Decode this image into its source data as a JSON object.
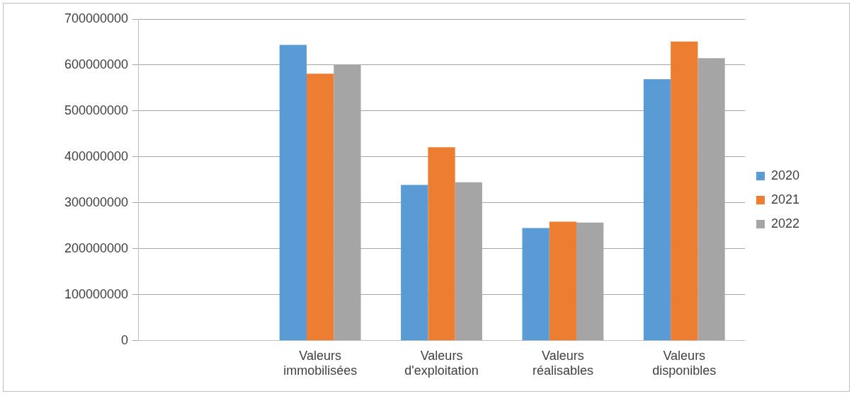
{
  "chart_data": {
    "type": "bar",
    "categories": [
      null,
      "Valeurs immobilisées",
      "Valeurs d'exploitation",
      "Valeurs réalisables",
      "Valeurs disponibles"
    ],
    "series": [
      {
        "name": "2020",
        "color": "#5b9bd5",
        "values": [
          null,
          644000000,
          339000000,
          245000000,
          569000000
        ]
      },
      {
        "name": "2021",
        "color": "#ed7d31",
        "values": [
          null,
          581000000,
          421000000,
          259000000,
          651000000
        ]
      },
      {
        "name": "2022",
        "color": "#a5a5a5",
        "values": [
          null,
          600000000,
          345000000,
          257000000,
          615000000
        ]
      }
    ],
    "ylim": [
      0,
      700000000
    ],
    "yticks": [
      0,
      100000000,
      200000000,
      300000000,
      400000000,
      500000000,
      600000000,
      700000000
    ],
    "grid": "y",
    "legend": "right"
  }
}
